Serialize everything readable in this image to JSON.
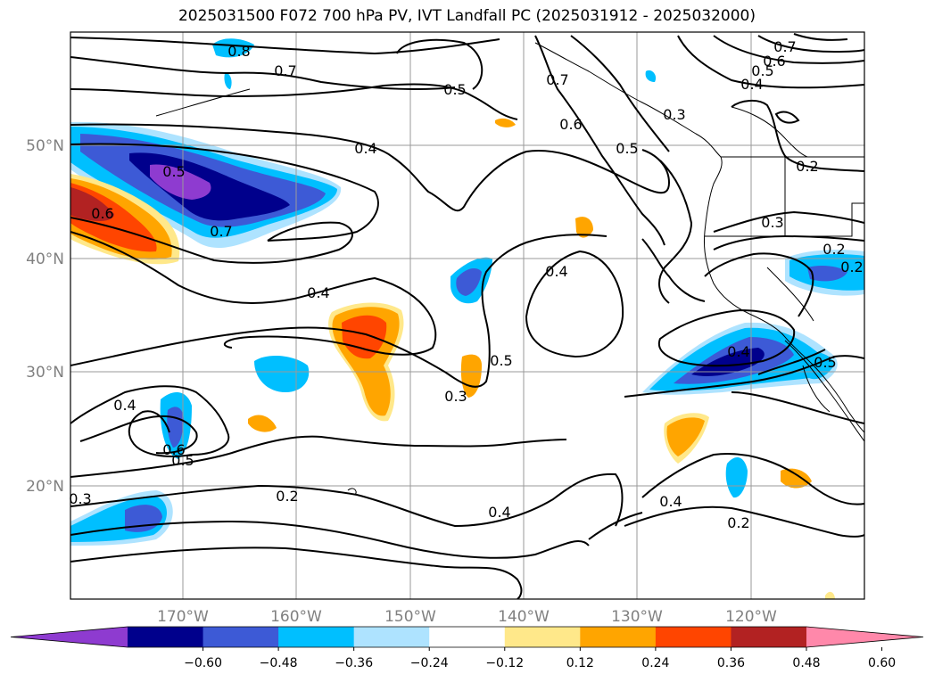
{
  "title": "2025031500 F072 700 hPa PV, IVT Landfall PC (2025031912 - 2025032000)",
  "lat_labels": [
    "50°N",
    "40°N",
    "30°N",
    "20°N"
  ],
  "lon_labels": [
    "170°W",
    "160°W",
    "150°W",
    "140°W",
    "130°W",
    "120°W"
  ],
  "colorbar": {
    "colors": [
      "#8e3bd0",
      "#00008c",
      "#3d5ad6",
      "#00bfff",
      "#aee3ff",
      "#ffffff",
      "#ffe88a",
      "#ffa500",
      "#ff4500",
      "#b22222",
      "#ff88aa"
    ],
    "ticks": [
      "−0.60",
      "−0.48",
      "−0.36",
      "−0.24",
      "−0.12",
      "0.12",
      "0.24",
      "0.36",
      "0.48",
      "0.60"
    ]
  },
  "contour_labels": [
    "0.8",
    "0.7",
    "0.5",
    "0.7",
    "0.6",
    "0.5",
    "0.3",
    "0.4",
    "0.2",
    "0.7",
    "0.6",
    "0.5",
    "0.4",
    "0.5",
    "0.6",
    "0.7",
    "0.4",
    "0.3",
    "0.2",
    "0.4",
    "0.4",
    "0.5",
    "0.3",
    "0.4",
    "0.6",
    "0.5",
    "0.3",
    "0.2",
    "0.4",
    "0.4",
    "0.2",
    "0.5",
    "0.2"
  ]
}
